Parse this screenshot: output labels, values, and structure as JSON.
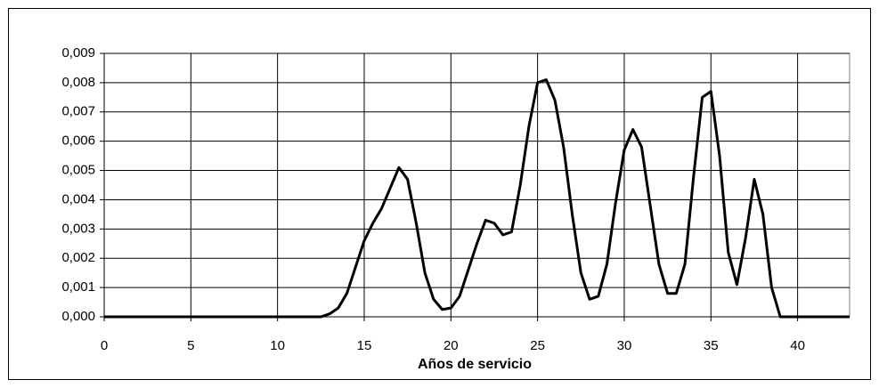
{
  "chart_data": {
    "type": "line",
    "x_label": "Años de servicio",
    "x": [
      0,
      12.5,
      13,
      13.5,
      14,
      14.5,
      15,
      15.5,
      16,
      16.5,
      17,
      17.5,
      18,
      18.5,
      19,
      19.5,
      20,
      20.5,
      21,
      21.5,
      22,
      22.5,
      23,
      23.5,
      24,
      24.5,
      25,
      25.5,
      26,
      26.5,
      27,
      27.5,
      28,
      28.5,
      29,
      29.5,
      30,
      30.5,
      31,
      31.5,
      32,
      32.5,
      33,
      33.5,
      34,
      34.5,
      35,
      35.5,
      36,
      36.5,
      37,
      37.5,
      38,
      38.5,
      39,
      43
    ],
    "series": [
      {
        "color": "#000000",
        "values": [
          0,
          0,
          0.0001,
          0.0003,
          0.0008,
          0.0017,
          0.0026,
          0.0032,
          0.0037,
          0.0044,
          0.0051,
          0.0047,
          0.0032,
          0.0015,
          0.0006,
          0.00025,
          0.0003,
          0.0007,
          0.0016,
          0.0025,
          0.0033,
          0.0032,
          0.0028,
          0.0029,
          0.0045,
          0.0065,
          0.008,
          0.0081,
          0.0074,
          0.0058,
          0.0035,
          0.0015,
          0.0006,
          0.0007,
          0.0018,
          0.0039,
          0.0057,
          0.0064,
          0.0058,
          0.0038,
          0.0018,
          0.0008,
          0.0008,
          0.0018,
          0.0048,
          0.0075,
          0.0077,
          0.0055,
          0.0022,
          0.0011,
          0.0027,
          0.0047,
          0.0035,
          0.001,
          0,
          0
        ]
      }
    ],
    "xlim": [
      0,
      43
    ],
    "xticks": [
      0,
      5,
      10,
      15,
      20,
      25,
      30,
      35,
      40
    ],
    "ylim": [
      0,
      0.009
    ],
    "yticks": [
      {
        "value": 0,
        "label": "0,000"
      },
      {
        "value": 0.001,
        "label": "0,001"
      },
      {
        "value": 0.002,
        "label": "0,002"
      },
      {
        "value": 0.003,
        "label": "0,003"
      },
      {
        "value": 0.004,
        "label": "0,004"
      },
      {
        "value": 0.005,
        "label": "0,005"
      },
      {
        "value": 0.006,
        "label": "0,006"
      },
      {
        "value": 0.007,
        "label": "0,007"
      },
      {
        "value": 0.008,
        "label": "0,008"
      },
      {
        "value": 0.009,
        "label": "0,009"
      }
    ],
    "grid": true
  }
}
